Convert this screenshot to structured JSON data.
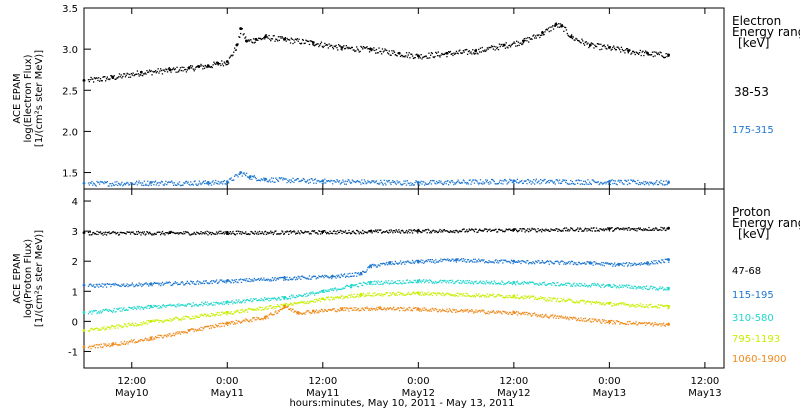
{
  "figure": {
    "xlabel": "hours:minutes, May 10, 2011 - May 13, 2011",
    "x_ticks": [
      {
        "t": 0.5,
        "time": "12:00",
        "date": "May10"
      },
      {
        "t": 1.0,
        "time": "0:00",
        "date": "May11"
      },
      {
        "t": 1.5,
        "time": "12:00",
        "date": "May11"
      },
      {
        "t": 2.0,
        "time": "0:00",
        "date": "May12"
      },
      {
        "t": 2.5,
        "time": "12:00",
        "date": "May12"
      },
      {
        "t": 3.0,
        "time": "0:00",
        "date": "May13"
      },
      {
        "t": 3.5,
        "time": "12:00",
        "date": "May13"
      }
    ],
    "x_range_days": [
      0.25,
      3.6
    ],
    "data_end_day": 3.31
  },
  "chart_data": [
    {
      "type": "scatter",
      "title": "",
      "ylabel_lines": [
        "ACE EPAM",
        "log(Electron Flux)",
        "[1/(cm²s ster MeV)]"
      ],
      "ylim": [
        1.3,
        3.5
      ],
      "y_ticks": [
        1.5,
        2.0,
        2.5,
        3.0,
        3.5
      ],
      "y_tick_labels": [
        "1.5",
        "2.0",
        "2.5",
        "3.0",
        "3.5"
      ],
      "legend_title_lines": [
        "Electron",
        "Energy ranges",
        "[keV]"
      ],
      "series": [
        {
          "name": "38-53",
          "color": "#000000",
          "x": [
            0.25,
            0.4,
            0.55,
            0.7,
            0.8,
            0.85,
            0.9,
            0.95,
            1.0,
            1.05,
            1.07,
            1.1,
            1.15,
            1.2,
            1.3,
            1.45,
            1.6,
            1.75,
            1.9,
            2.0,
            2.15,
            2.3,
            2.45,
            2.55,
            2.65,
            2.72,
            2.75,
            2.8,
            2.9,
            3.0,
            3.1,
            3.2,
            3.31
          ],
          "y": [
            2.62,
            2.66,
            2.72,
            2.75,
            2.77,
            2.79,
            2.8,
            2.83,
            2.85,
            3.05,
            3.25,
            3.1,
            3.12,
            3.15,
            3.12,
            3.08,
            3.02,
            3.0,
            2.95,
            2.92,
            2.95,
            2.98,
            3.05,
            3.1,
            3.2,
            3.3,
            3.28,
            3.15,
            3.05,
            3.02,
            2.98,
            2.95,
            2.93
          ]
        },
        {
          "name": "175-315",
          "color": "#1f77d0",
          "x": [
            0.25,
            0.6,
            0.9,
            1.0,
            1.07,
            1.12,
            1.2,
            1.5,
            2.0,
            2.5,
            3.0,
            3.31
          ],
          "y": [
            1.37,
            1.38,
            1.38,
            1.39,
            1.5,
            1.45,
            1.42,
            1.4,
            1.38,
            1.4,
            1.39,
            1.38
          ]
        }
      ]
    },
    {
      "type": "scatter",
      "title": "",
      "ylabel_lines": [
        "ACE EPAM",
        "log(Proton Flux)",
        "[1/(cm²s ster MeV)]"
      ],
      "ylim": [
        -1.55,
        4.4
      ],
      "y_ticks": [
        -1,
        0,
        1,
        2,
        3,
        4
      ],
      "y_tick_labels": [
        "-1",
        "0",
        "1",
        "2",
        "3",
        "4"
      ],
      "legend_title_lines": [
        "Proton",
        "Energy ranges",
        "[keV]"
      ],
      "series": [
        {
          "name": "47-68",
          "color": "#000000",
          "x": [
            0.25,
            0.7,
            1.0,
            1.5,
            1.75,
            2.0,
            2.5,
            3.0,
            3.31
          ],
          "y": [
            2.95,
            2.95,
            2.96,
            2.98,
            3.0,
            3.02,
            3.05,
            3.08,
            3.1
          ]
        },
        {
          "name": "115-195",
          "color": "#1f77d0",
          "x": [
            0.25,
            0.6,
            1.0,
            1.3,
            1.55,
            1.7,
            1.75,
            1.85,
            2.0,
            2.2,
            2.5,
            2.9,
            3.05,
            3.2,
            3.31
          ],
          "y": [
            1.2,
            1.25,
            1.35,
            1.45,
            1.5,
            1.6,
            1.85,
            1.95,
            2.0,
            2.05,
            2.0,
            1.95,
            1.9,
            1.95,
            2.05
          ]
        },
        {
          "name": "310-580",
          "color": "#22d6cc",
          "x": [
            0.25,
            0.6,
            1.0,
            1.3,
            1.5,
            1.65,
            1.75,
            2.0,
            2.5,
            3.0,
            3.31
          ],
          "y": [
            0.3,
            0.5,
            0.65,
            0.8,
            1.0,
            1.2,
            1.3,
            1.35,
            1.3,
            1.2,
            1.1
          ]
        },
        {
          "name": "795-1193",
          "color": "#c8ee00",
          "x": [
            0.25,
            0.6,
            1.0,
            1.3,
            1.5,
            1.7,
            2.0,
            2.5,
            3.0,
            3.31
          ],
          "y": [
            -0.3,
            0.0,
            0.3,
            0.55,
            0.75,
            0.9,
            0.95,
            0.85,
            0.6,
            0.5
          ]
        },
        {
          "name": "1060-1900",
          "color": "#f08a1c",
          "x": [
            0.25,
            0.4,
            0.6,
            0.8,
            1.0,
            1.2,
            1.3,
            1.37,
            1.45,
            1.6,
            1.8,
            2.0,
            2.5,
            3.0,
            3.31
          ],
          "y": [
            -0.85,
            -0.75,
            -0.55,
            -0.3,
            -0.05,
            0.15,
            0.5,
            0.3,
            0.35,
            0.42,
            0.45,
            0.42,
            0.3,
            0.0,
            -0.1
          ]
        }
      ]
    }
  ]
}
